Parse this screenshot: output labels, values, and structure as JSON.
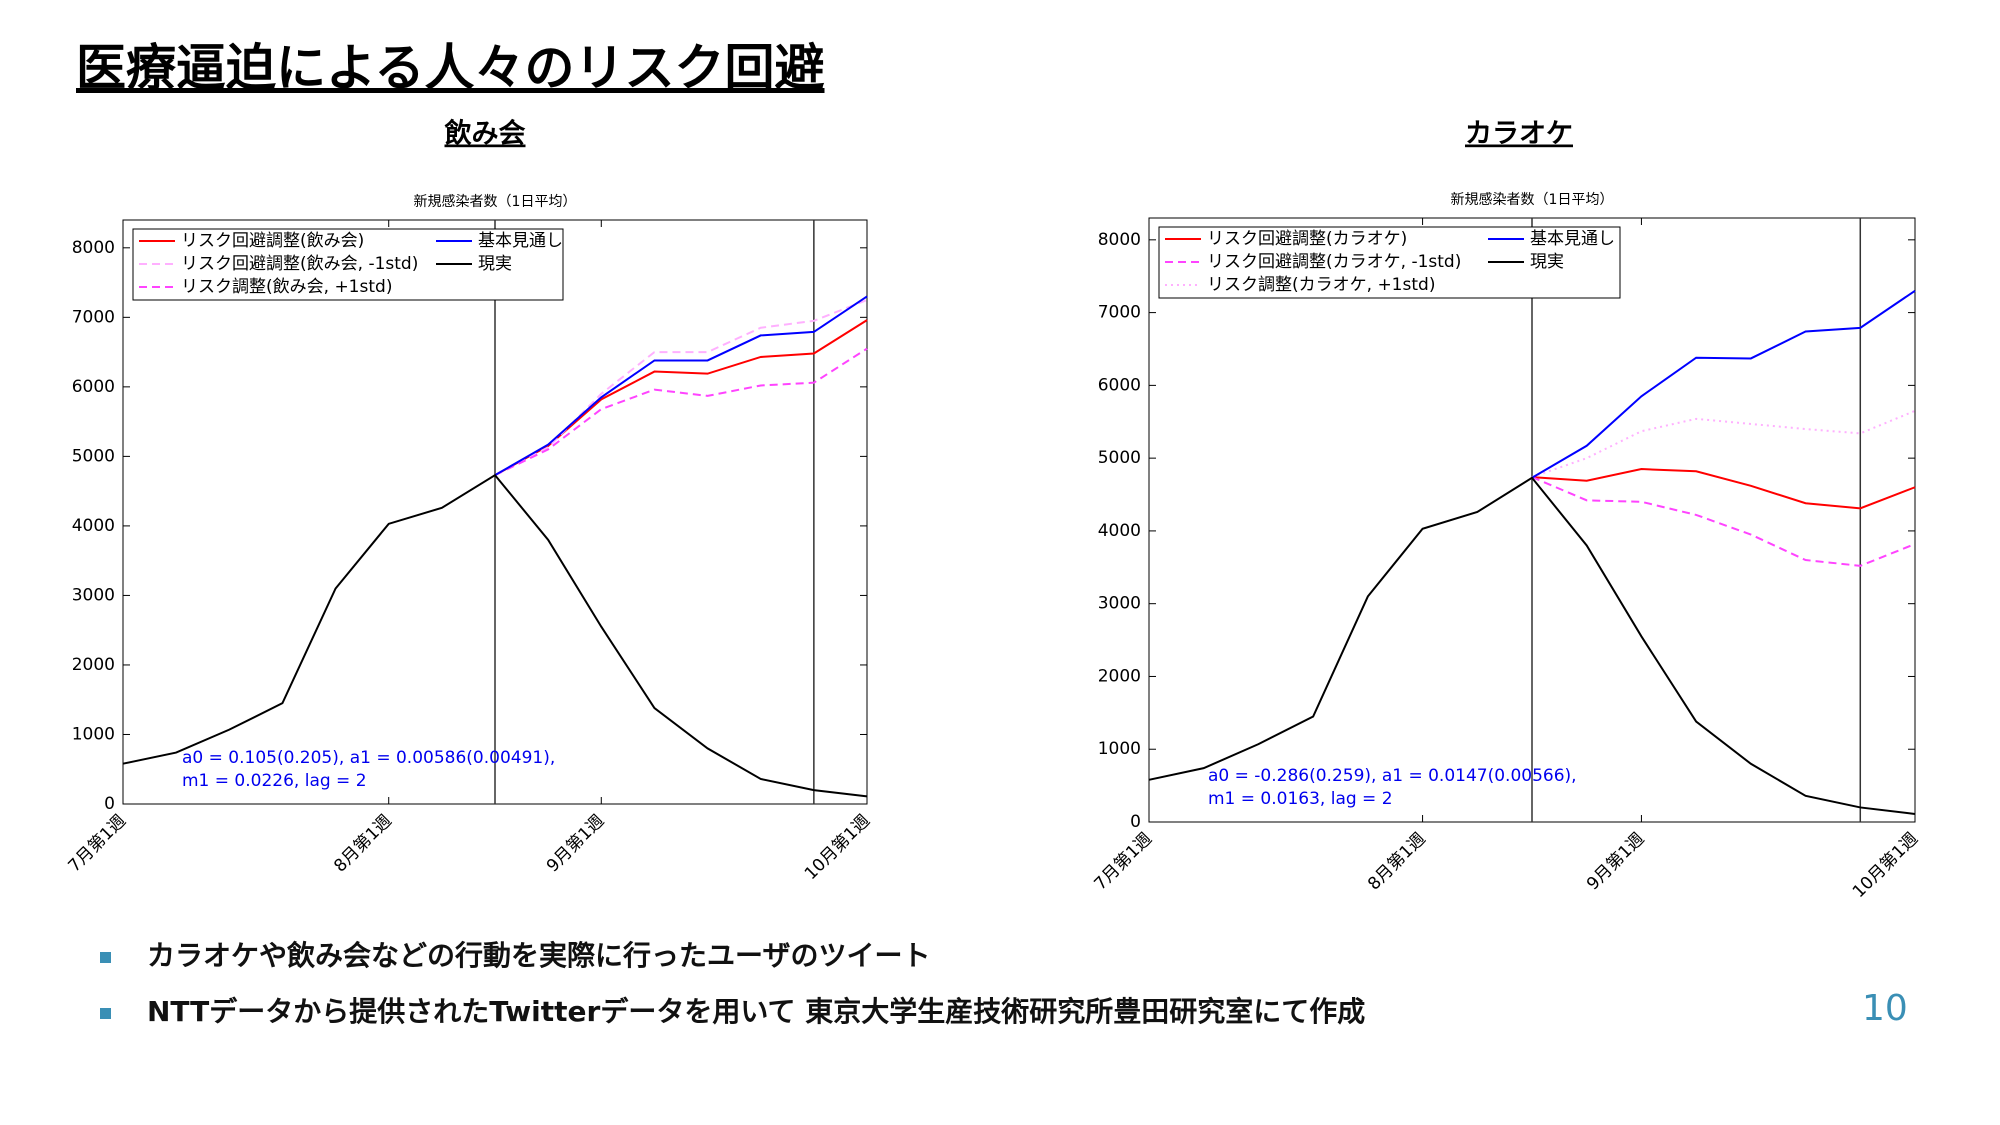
{
  "slide": {
    "title": "医療逼迫による人々のリスク回避",
    "bullets": [
      "カラオケや飲み会などの行動を実際に行ったユーザのツイート",
      "NTTデータから提供されたTwitterデータを用いて 東京大学生産技術研究所豊田研究室にて作成"
    ],
    "page_number": "10"
  },
  "chart_data": [
    {
      "type": "line",
      "heading": "飲み会",
      "title": "新規感染者数（1日平均）",
      "x": [
        0,
        1,
        2,
        3,
        4,
        5,
        6,
        7,
        8,
        9,
        10,
        11,
        12,
        13,
        14
      ],
      "xlim": [
        0,
        14
      ],
      "xticks": [
        {
          "value": 0,
          "label": "7月第1週"
        },
        {
          "value": 5,
          "label": "8月第1週"
        },
        {
          "value": 9,
          "label": "9月第1週"
        },
        {
          "value": 14,
          "label": "10月第1週"
        }
      ],
      "ylim": [
        0,
        8400
      ],
      "yticks": [
        0,
        1000,
        2000,
        3000,
        4000,
        5000,
        6000,
        7000,
        8000
      ],
      "vlines": [
        7,
        13
      ],
      "grid": false,
      "series": [
        {
          "name": "リスク回避調整(飲み会)",
          "color": "#ff0000",
          "style": "solid",
          "values": [
            null,
            null,
            null,
            null,
            null,
            null,
            null,
            4730,
            5150,
            5820,
            6220,
            6190,
            6430,
            6480,
            6960
          ]
        },
        {
          "name": "リスク回避調整(飲み会, -1std)",
          "color": "#ffb0ff",
          "style": "dashed",
          "values": [
            null,
            null,
            null,
            null,
            null,
            null,
            null,
            4730,
            5130,
            5900,
            6500,
            6500,
            6850,
            6950,
            7250
          ]
        },
        {
          "name": "リスク調整(飲み会, +1std)",
          "color": "#ff44ff",
          "style": "dashed",
          "values": [
            null,
            null,
            null,
            null,
            null,
            null,
            null,
            4730,
            5100,
            5680,
            5960,
            5870,
            6020,
            6060,
            6550
          ]
        },
        {
          "name": "基本見通し",
          "color": "#0000ff",
          "style": "solid",
          "values": [
            null,
            null,
            null,
            null,
            null,
            null,
            null,
            4730,
            5170,
            5850,
            6380,
            6380,
            6740,
            6790,
            7300
          ]
        },
        {
          "name": "現実",
          "color": "#000000",
          "style": "solid",
          "values": [
            580,
            740,
            1070,
            1450,
            3100,
            4030,
            4260,
            4730,
            3800,
            2550,
            1380,
            800,
            360,
            200,
            110
          ]
        }
      ],
      "annotations": [
        "a0 = 0.105(0.205), a1 = 0.00586(0.00491),",
        "m1 = 0.0226, lag = 2"
      ]
    },
    {
      "type": "line",
      "heading": "カラオケ",
      "title": "新規感染者数（1日平均）",
      "x": [
        0,
        1,
        2,
        3,
        4,
        5,
        6,
        7,
        8,
        9,
        10,
        11,
        12,
        13,
        14
      ],
      "xlim": [
        0,
        14
      ],
      "xticks": [
        {
          "value": 0,
          "label": "7月第1週"
        },
        {
          "value": 5,
          "label": "8月第1週"
        },
        {
          "value": 9,
          "label": "9月第1週"
        },
        {
          "value": 14,
          "label": "10月第1週"
        }
      ],
      "ylim": [
        0,
        8300
      ],
      "yticks": [
        0,
        1000,
        2000,
        3000,
        4000,
        5000,
        6000,
        7000,
        8000
      ],
      "vlines": [
        7,
        13
      ],
      "grid": false,
      "series": [
        {
          "name": "リスク回避調整(カラオケ)",
          "color": "#ff0000",
          "style": "solid",
          "values": [
            null,
            null,
            null,
            null,
            null,
            null,
            null,
            4740,
            4690,
            4850,
            4820,
            4620,
            4380,
            4310,
            4600
          ]
        },
        {
          "name": "リスク回避調整(カラオケ, -1std)",
          "color": "#ff44ff",
          "style": "dashed",
          "values": [
            null,
            null,
            null,
            null,
            null,
            null,
            null,
            4740,
            4420,
            4400,
            4220,
            3950,
            3600,
            3520,
            3820
          ]
        },
        {
          "name": "リスク調整(カラオケ, +1std)",
          "color": "#ffb0ff",
          "style": "dotted",
          "values": [
            null,
            null,
            null,
            null,
            null,
            null,
            null,
            4740,
            5000,
            5370,
            5540,
            5470,
            5400,
            5340,
            5650
          ]
        },
        {
          "name": "基本見通し",
          "color": "#0000ff",
          "style": "solid",
          "values": [
            null,
            null,
            null,
            null,
            null,
            null,
            null,
            4730,
            5170,
            5850,
            6380,
            6370,
            6740,
            6790,
            7300
          ]
        },
        {
          "name": "現実",
          "color": "#000000",
          "style": "solid",
          "values": [
            580,
            740,
            1070,
            1450,
            3100,
            4030,
            4260,
            4730,
            3800,
            2550,
            1380,
            800,
            360,
            200,
            110
          ]
        }
      ],
      "annotations": [
        "a0 = -0.286(0.259), a1 = 0.0147(0.00566),",
        "m1 = 0.0163, lag = 2"
      ]
    }
  ]
}
